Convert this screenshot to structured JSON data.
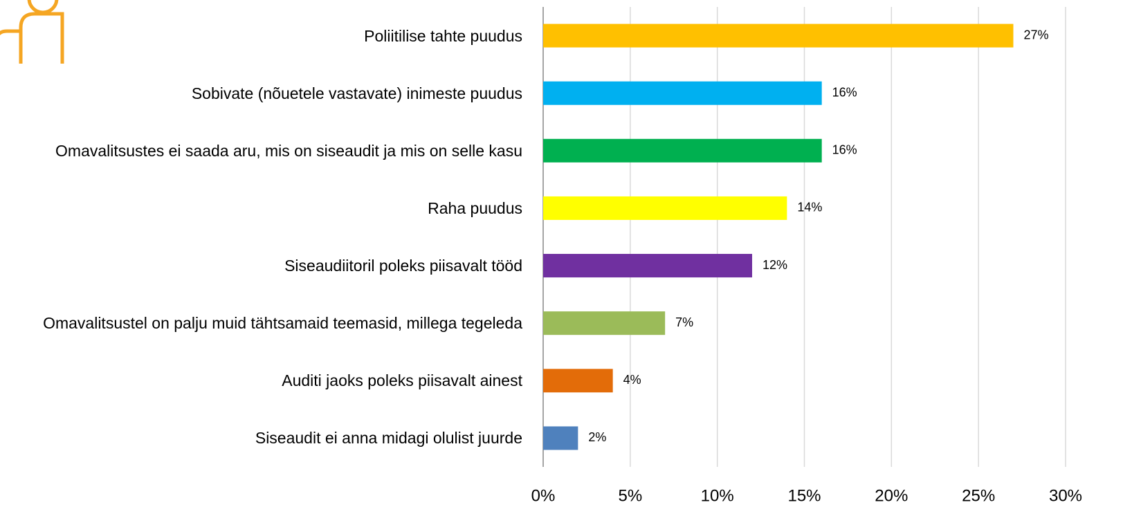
{
  "chart_data": {
    "type": "bar",
    "orientation": "horizontal",
    "categories": [
      "Poliitilise tahte puudus",
      "Sobivate (nõuetele vastavate) inimeste puudus",
      "Omavalitsustes ei saada aru, mis on siseaudit ja mis on selle kasu",
      "Raha puudus",
      "Siseaudiitoril poleks piisavalt tööd",
      "Omavalitsustel on palju muid tähtsamaid teemasid, millega tegeleda",
      "Auditi jaoks poleks piisavalt ainest",
      "Siseaudit ei anna midagi olulist juurde"
    ],
    "values": [
      27,
      16,
      16,
      14,
      12,
      7,
      4,
      2
    ],
    "value_labels": [
      "27%",
      "16%",
      "16%",
      "14%",
      "12%",
      "7%",
      "4%",
      "2%"
    ],
    "colors": [
      "#ffc000",
      "#00b0f0",
      "#00b050",
      "#ffff00",
      "#7030a0",
      "#9bbb59",
      "#e36c09",
      "#4f81bd"
    ],
    "xlim": [
      0,
      30
    ],
    "xticks": [
      {
        "value": 0,
        "label": "0%"
      },
      {
        "value": 5,
        "label": "5%"
      },
      {
        "value": 10,
        "label": "10%"
      },
      {
        "value": 15,
        "label": "15%"
      },
      {
        "value": 20,
        "label": "20%"
      },
      {
        "value": 25,
        "label": "25%"
      },
      {
        "value": 30,
        "label": "30%"
      }
    ],
    "grid": true
  }
}
